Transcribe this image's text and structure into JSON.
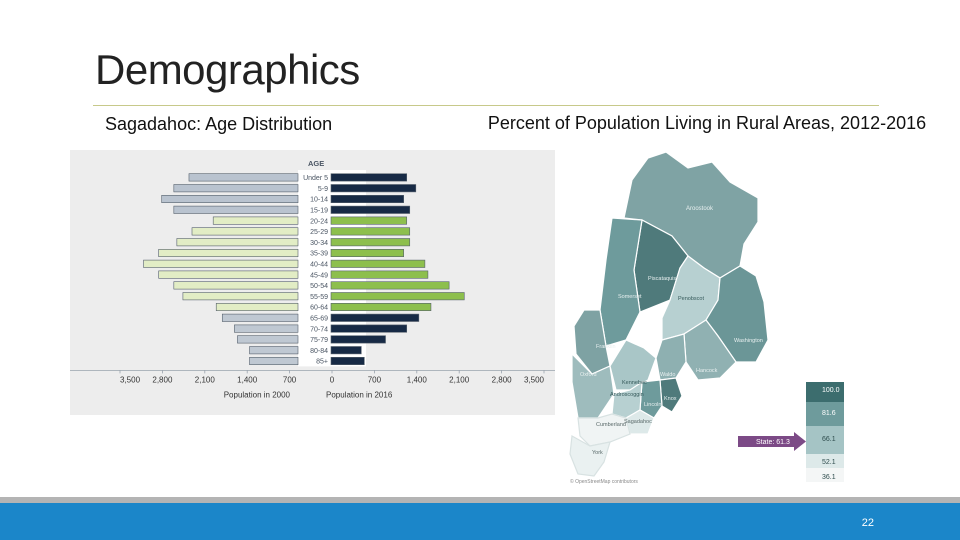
{
  "slide": {
    "title": "Demographics",
    "left_heading": "Sagadahoc: Age Distribution",
    "right_heading": "Percent of Population Living in Rural Areas, 2012-2016",
    "page_number": "22"
  },
  "chart_data": [
    {
      "type": "bar",
      "orientation": "horizontal-population-pyramid",
      "title": "Sagadahoc: Age Distribution",
      "age_axis_label": "AGE",
      "categories": [
        "Under 5",
        "5-9",
        "10-14",
        "15-19",
        "20-24",
        "25-29",
        "30-34",
        "35-39",
        "40-44",
        "45-49",
        "50-54",
        "55-59",
        "60-64",
        "65-69",
        "70-74",
        "75-79",
        "80-84",
        "85+"
      ],
      "series": [
        {
          "name": "Population in 2000",
          "side": "left",
          "values": [
            1800,
            2050,
            2250,
            2050,
            1400,
            1750,
            2000,
            2300,
            2550,
            2300,
            2050,
            1900,
            1350,
            1250,
            1050,
            1000,
            800,
            800
          ]
        },
        {
          "name": "Population in 2016",
          "side": "right",
          "values": [
            1250,
            1400,
            1200,
            1300,
            1250,
            1300,
            1300,
            1200,
            1550,
            1600,
            1950,
            2200,
            1650,
            1450,
            1250,
            900,
            500,
            550
          ]
        }
      ],
      "xlim": [
        -3500,
        3500
      ],
      "x_ticks": [
        "3,500",
        "2,800",
        "2,100",
        "1,400",
        "700",
        "0",
        "700",
        "1,400",
        "2,100",
        "2,800",
        "3,500"
      ],
      "colors": {
        "2000_young": "#b9c3cf",
        "2000_working": "#e2edc5",
        "2000_old": "#bfc8d2",
        "2016_young": "#172a45",
        "2016_working": "#8dbf4d",
        "2016_old": "#172a45",
        "outline": "#55606c",
        "background": "#ededed"
      }
    },
    {
      "type": "choropleth-map",
      "title": "Percent of Population Living in Rural Areas, 2012-2016",
      "region_labels": [
        "Aroostook",
        "Piscataquis",
        "Somerset",
        "Penobscot",
        "Washington",
        "Franklin",
        "Hancock",
        "Oxford",
        "Kennebec",
        "Waldo",
        "Knox",
        "Androscoggin",
        "Lincoln",
        "Cumberland",
        "Sagadahoc",
        "York"
      ],
      "legend_values": [
        "100.0",
        "81.6",
        "66.1",
        "52.1",
        "36.1"
      ],
      "state_marker_label": "State: 61.3",
      "attribution": "© OpenStreetMap contributors",
      "colors": {
        "high": "#3c6d6e",
        "mid_high": "#6e9b9c",
        "mid": "#a5c4c5",
        "low": "#dde9e9",
        "lowest": "#f4f6f6",
        "arrow": "#7c4a86"
      }
    }
  ]
}
